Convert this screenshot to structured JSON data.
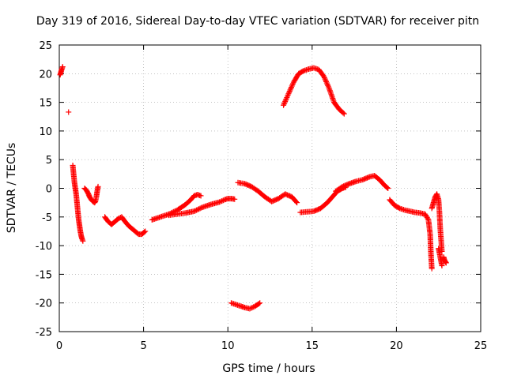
{
  "chart_data": {
    "type": "scatter",
    "title": "Day 319 of 2016, Sidereal Day-to-day VTEC variation (SDTVAR) for receiver pitn",
    "xlabel": "GPS time / hours",
    "ylabel": "SDTVAR / TECUs",
    "xlim": [
      0,
      25
    ],
    "ylim": [
      -25,
      25
    ],
    "xticks": [
      0,
      5,
      10,
      15,
      20,
      25
    ],
    "yticks": [
      -25,
      -20,
      -15,
      -10,
      -5,
      0,
      5,
      10,
      15,
      20,
      25
    ],
    "grid": true,
    "marker": "+",
    "color": "#ff0000",
    "series": [
      {
        "name": "seg1",
        "x": [
          0.05,
          0.1,
          0.15,
          0.2
        ],
        "y": [
          19.8,
          20.3,
          20.8,
          21.2
        ]
      },
      {
        "name": "seg2",
        "x": [
          0.55
        ],
        "y": [
          13.3
        ]
      },
      {
        "name": "seg3",
        "x": [
          0.8,
          0.85,
          0.9,
          0.95,
          1.0,
          1.05,
          1.1,
          1.15,
          1.2,
          1.25,
          1.3,
          1.35,
          1.4
        ],
        "y": [
          4.0,
          2.5,
          1.0,
          0.0,
          -1.0,
          -2.5,
          -4.0,
          -5.5,
          -6.5,
          -7.5,
          -8.3,
          -8.8,
          -9.2
        ]
      },
      {
        "name": "seg4",
        "x": [
          1.5,
          1.6,
          1.7,
          1.8,
          1.9,
          2.0,
          2.1,
          2.15,
          2.2,
          2.25,
          2.3
        ],
        "y": [
          0.0,
          -0.3,
          -0.8,
          -1.5,
          -2.0,
          -2.3,
          -2.5,
          -2.2,
          -1.5,
          -0.5,
          0.3
        ]
      },
      {
        "name": "seg5",
        "x": [
          2.7,
          2.9,
          3.1,
          3.3,
          3.5,
          3.7,
          3.9,
          4.1,
          4.3,
          4.5,
          4.7,
          4.9,
          5.1
        ],
        "y": [
          -5.0,
          -5.8,
          -6.3,
          -5.8,
          -5.3,
          -5.0,
          -5.8,
          -6.5,
          -7.0,
          -7.5,
          -8.0,
          -8.0,
          -7.5
        ]
      },
      {
        "name": "seg6",
        "x": [
          5.5,
          6.0,
          6.5,
          7.0,
          7.5,
          7.8,
          8.0,
          8.2,
          8.4
        ],
        "y": [
          -5.5,
          -5.0,
          -4.5,
          -3.8,
          -2.8,
          -2.0,
          -1.3,
          -1.1,
          -1.3
        ]
      },
      {
        "name": "seg7",
        "x": [
          6.5,
          7.0,
          7.5,
          8.0,
          8.5,
          9.0,
          9.5,
          9.8,
          10.0,
          10.2,
          10.4
        ],
        "y": [
          -4.7,
          -4.5,
          -4.3,
          -4.0,
          -3.3,
          -2.8,
          -2.4,
          -2.0,
          -1.8,
          -1.8,
          -1.9
        ]
      },
      {
        "name": "seg8",
        "x": [
          10.2,
          10.5,
          10.8,
          11.0,
          11.3,
          11.6,
          11.9
        ],
        "y": [
          -20.0,
          -20.3,
          -20.6,
          -20.8,
          -21.0,
          -20.6,
          -20.0
        ]
      },
      {
        "name": "seg9",
        "x": [
          10.6,
          11.0,
          11.4,
          11.8,
          12.2,
          12.6,
          13.0,
          13.4,
          13.8,
          14.1
        ],
        "y": [
          1.0,
          0.8,
          0.3,
          -0.5,
          -1.5,
          -2.3,
          -1.8,
          -1.0,
          -1.5,
          -2.5
        ]
      },
      {
        "name": "seg10",
        "x": [
          13.3,
          13.6,
          13.9,
          14.2,
          14.5,
          14.8,
          15.1,
          15.4,
          15.7,
          16.0,
          16.3,
          16.6,
          16.9
        ],
        "y": [
          14.5,
          16.5,
          18.5,
          20.0,
          20.5,
          20.8,
          21.0,
          20.7,
          19.5,
          17.5,
          15.0,
          13.8,
          13.0
        ]
      },
      {
        "name": "seg11",
        "x": [
          14.3,
          14.7,
          15.1,
          15.5,
          15.9,
          16.2,
          16.5,
          16.8,
          17.0
        ],
        "y": [
          -4.2,
          -4.1,
          -4.0,
          -3.5,
          -2.5,
          -1.5,
          -0.5,
          0.0,
          0.2
        ]
      },
      {
        "name": "seg12",
        "x": [
          16.4,
          16.8,
          17.2,
          17.6,
          18.0,
          18.4,
          18.7,
          19.0,
          19.3,
          19.5
        ],
        "y": [
          -0.5,
          0.3,
          0.8,
          1.2,
          1.5,
          2.0,
          2.2,
          1.5,
          0.5,
          0.0
        ]
      },
      {
        "name": "seg13",
        "x": [
          19.6,
          19.9,
          20.2,
          20.5,
          20.8,
          21.1,
          21.4,
          21.7,
          21.9,
          22.0,
          22.05,
          22.1
        ],
        "y": [
          -2.0,
          -3.0,
          -3.5,
          -3.8,
          -4.0,
          -4.2,
          -4.3,
          -4.5,
          -5.5,
          -8.0,
          -11.5,
          -14.0
        ]
      },
      {
        "name": "seg14",
        "x": [
          22.1,
          22.2,
          22.3,
          22.4,
          22.5,
          22.55,
          22.6,
          22.7
        ],
        "y": [
          -3.5,
          -2.5,
          -1.5,
          -1.0,
          -2.0,
          -4.0,
          -7.0,
          -11.0
        ]
      },
      {
        "name": "seg15",
        "x": [
          22.5,
          22.6,
          22.7
        ],
        "y": [
          -10.5,
          -12.0,
          -13.5
        ]
      },
      {
        "name": "seg16",
        "x": [
          22.8,
          22.85,
          22.9,
          22.95
        ],
        "y": [
          -12.0,
          -12.5,
          -12.8,
          -13.0
        ]
      }
    ]
  }
}
